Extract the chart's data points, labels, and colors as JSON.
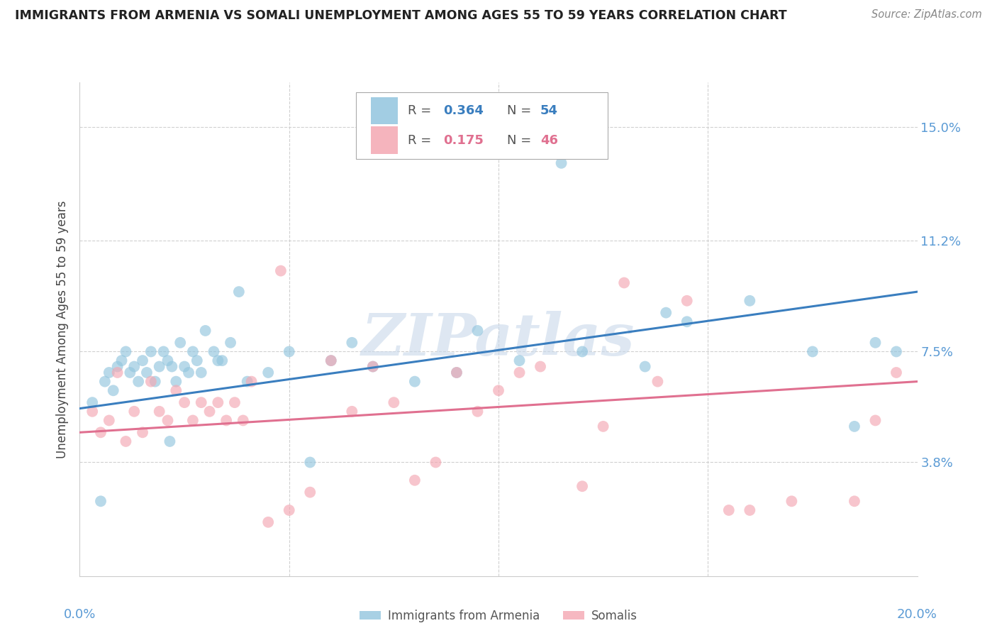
{
  "title": "IMMIGRANTS FROM ARMENIA VS SOMALI UNEMPLOYMENT AMONG AGES 55 TO 59 YEARS CORRELATION CHART",
  "source": "Source: ZipAtlas.com",
  "ylabel": "Unemployment Among Ages 55 to 59 years",
  "ytick_values": [
    3.8,
    7.5,
    11.2,
    15.0
  ],
  "xmin": 0.0,
  "xmax": 20.0,
  "ymin": 0.0,
  "ymax": 16.5,
  "blue_color": "#92c5de",
  "pink_color": "#f4a7b2",
  "line_blue": "#3a7ebf",
  "line_pink": "#e07090",
  "watermark": "ZIPatlas",
  "watermark_color": "#c8d8ea",
  "scatter_blue_x": [
    0.3,
    0.5,
    0.6,
    0.7,
    0.8,
    0.9,
    1.0,
    1.1,
    1.2,
    1.3,
    1.4,
    1.5,
    1.6,
    1.7,
    1.8,
    1.9,
    2.0,
    2.1,
    2.2,
    2.3,
    2.4,
    2.5,
    2.6,
    2.7,
    2.8,
    2.9,
    3.0,
    3.2,
    3.4,
    3.6,
    3.8,
    4.0,
    4.5,
    5.0,
    5.5,
    6.0,
    6.5,
    7.0,
    8.0,
    9.0,
    9.5,
    10.5,
    11.5,
    12.0,
    13.5,
    14.0,
    14.5,
    16.0,
    17.5,
    18.5,
    19.0,
    19.5,
    3.3,
    2.15
  ],
  "scatter_blue_y": [
    5.8,
    2.5,
    6.5,
    6.8,
    6.2,
    7.0,
    7.2,
    7.5,
    6.8,
    7.0,
    6.5,
    7.2,
    6.8,
    7.5,
    6.5,
    7.0,
    7.5,
    7.2,
    7.0,
    6.5,
    7.8,
    7.0,
    6.8,
    7.5,
    7.2,
    6.8,
    8.2,
    7.5,
    7.2,
    7.8,
    9.5,
    6.5,
    6.8,
    7.5,
    3.8,
    7.2,
    7.8,
    7.0,
    6.5,
    6.8,
    8.2,
    7.2,
    13.8,
    7.5,
    7.0,
    8.8,
    8.5,
    9.2,
    7.5,
    5.0,
    7.8,
    7.5,
    7.2,
    4.5
  ],
  "scatter_pink_x": [
    0.3,
    0.5,
    0.7,
    0.9,
    1.1,
    1.3,
    1.5,
    1.7,
    1.9,
    2.1,
    2.3,
    2.5,
    2.7,
    2.9,
    3.1,
    3.3,
    3.5,
    3.7,
    3.9,
    4.1,
    4.5,
    5.0,
    5.5,
    6.5,
    7.5,
    8.5,
    9.0,
    9.5,
    10.0,
    11.0,
    12.0,
    12.5,
    13.0,
    14.5,
    15.5,
    16.0,
    17.0,
    18.5,
    19.5,
    10.5,
    4.8,
    6.0,
    7.0,
    8.0,
    13.8,
    19.0
  ],
  "scatter_pink_y": [
    5.5,
    4.8,
    5.2,
    6.8,
    4.5,
    5.5,
    4.8,
    6.5,
    5.5,
    5.2,
    6.2,
    5.8,
    5.2,
    5.8,
    5.5,
    5.8,
    5.2,
    5.8,
    5.2,
    6.5,
    1.8,
    2.2,
    2.8,
    5.5,
    5.8,
    3.8,
    6.8,
    5.5,
    6.2,
    7.0,
    3.0,
    5.0,
    9.8,
    9.2,
    2.2,
    2.2,
    2.5,
    2.5,
    6.8,
    6.8,
    10.2,
    7.2,
    7.0,
    3.2,
    6.5,
    5.2
  ],
  "line_blue_x0": 0.0,
  "line_blue_y0": 5.6,
  "line_blue_x1": 20.0,
  "line_blue_y1": 9.5,
  "line_pink_x0": 0.0,
  "line_pink_y0": 4.8,
  "line_pink_x1": 20.0,
  "line_pink_y1": 6.5
}
